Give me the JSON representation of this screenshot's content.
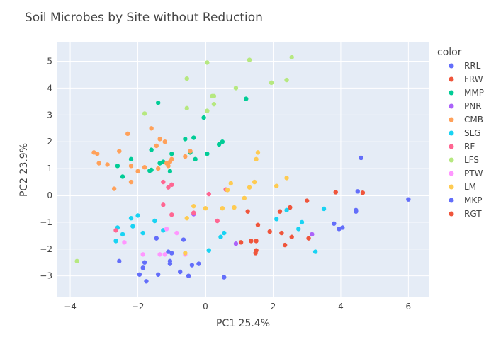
{
  "chart_data": {
    "type": "scatter",
    "title": "Soil Microbes by Site without Reduction",
    "xlabel": "PC1 25.4%",
    "ylabel": "PC2 23.9%",
    "xlim": [
      -4.4,
      6.6
    ],
    "ylim": [
      -3.8,
      5.7
    ],
    "x_ticks": [
      -4,
      -2,
      0,
      2,
      4,
      6
    ],
    "y_ticks": [
      -3,
      -2,
      -1,
      0,
      1,
      2,
      3,
      4,
      5
    ],
    "x_tick_labels": [
      "−4",
      "−2",
      "0",
      "2",
      "4",
      "6"
    ],
    "y_tick_labels": [
      "−3",
      "−2",
      "−1",
      "0",
      "1",
      "2",
      "3",
      "4",
      "5"
    ],
    "grid": true,
    "background": "#E5ECF6",
    "legend_title": "color",
    "legend_position": "right",
    "series": [
      {
        "name": "RRL",
        "color": "#636EFA",
        "points": [
          [
            4.6,
            1.4
          ],
          [
            4.5,
            0.15
          ],
          [
            6.0,
            -0.15
          ],
          [
            4.45,
            -0.6
          ],
          [
            4.45,
            -0.55
          ],
          [
            3.8,
            -1.05
          ],
          [
            3.95,
            -1.25
          ],
          [
            4.05,
            -1.2
          ]
        ]
      },
      {
        "name": "FRW",
        "color": "#EF553B",
        "points": [
          [
            3.85,
            0.12
          ],
          [
            4.65,
            0.1
          ],
          [
            3.0,
            -0.2
          ],
          [
            2.5,
            -0.45
          ],
          [
            2.2,
            -0.6
          ],
          [
            1.25,
            -0.6
          ],
          [
            1.55,
            -1.1
          ],
          [
            1.9,
            -1.35
          ],
          [
            2.25,
            -1.4
          ],
          [
            3.05,
            -1.6
          ],
          [
            2.55,
            -1.55
          ],
          [
            2.35,
            -1.85
          ],
          [
            1.05,
            -1.75
          ],
          [
            1.35,
            -1.7
          ],
          [
            1.5,
            -1.7
          ],
          [
            1.5,
            -2.05
          ],
          [
            1.48,
            -2.15
          ]
        ]
      },
      {
        "name": "MMP",
        "color": "#00CC96",
        "points": [
          [
            -1.4,
            3.45
          ],
          [
            1.2,
            3.6
          ],
          [
            -0.05,
            2.9
          ],
          [
            -0.35,
            2.15
          ],
          [
            0.5,
            2.0
          ],
          [
            -0.6,
            2.1
          ],
          [
            0.4,
            1.9
          ],
          [
            -1.6,
            1.7
          ],
          [
            -0.45,
            1.6
          ],
          [
            0.05,
            1.55
          ],
          [
            -1.0,
            1.55
          ],
          [
            -2.2,
            1.35
          ],
          [
            -1.25,
            1.25
          ],
          [
            -1.35,
            1.2
          ],
          [
            -0.3,
            1.35
          ],
          [
            -2.6,
            1.1
          ],
          [
            -1.05,
            0.9
          ],
          [
            -1.6,
            0.95
          ],
          [
            -1.65,
            0.92
          ],
          [
            -2.45,
            0.7
          ]
        ]
      },
      {
        "name": "PNR",
        "color": "#AB63FA",
        "points": [
          [
            3.15,
            -1.45
          ],
          [
            0.9,
            -1.8
          ],
          [
            -0.35,
            -0.7
          ]
        ]
      },
      {
        "name": "CMB",
        "color": "#FFA15A",
        "points": [
          [
            -1.6,
            2.5
          ],
          [
            -2.3,
            2.3
          ],
          [
            -1.35,
            2.1
          ],
          [
            -1.2,
            2.0
          ],
          [
            -1.45,
            1.85
          ],
          [
            -0.45,
            1.65
          ],
          [
            -3.3,
            1.6
          ],
          [
            -2.55,
            1.65
          ],
          [
            -3.2,
            1.55
          ],
          [
            -1.0,
            1.35
          ],
          [
            -1.05,
            1.25
          ],
          [
            -1.15,
            1.2
          ],
          [
            -3.15,
            1.2
          ],
          [
            -2.9,
            1.15
          ],
          [
            -2.2,
            1.1
          ],
          [
            -1.4,
            1.0
          ],
          [
            -1.8,
            1.05
          ],
          [
            -1.1,
            1.1
          ],
          [
            -0.6,
            1.45
          ],
          [
            -2.0,
            0.9
          ],
          [
            -2.2,
            0.5
          ],
          [
            -2.7,
            0.25
          ]
        ]
      },
      {
        "name": "SLG",
        "color": "#19D3F3",
        "points": [
          [
            3.5,
            -0.5
          ],
          [
            2.4,
            -0.55
          ],
          [
            2.85,
            -1.0
          ],
          [
            2.1,
            -0.88
          ],
          [
            2.75,
            -1.25
          ],
          [
            -2.0,
            -0.75
          ],
          [
            -2.2,
            -0.85
          ],
          [
            -2.15,
            -1.15
          ],
          [
            -2.6,
            -1.2
          ],
          [
            -2.45,
            -1.45
          ],
          [
            -1.85,
            -1.4
          ],
          [
            -2.65,
            -1.7
          ],
          [
            -1.5,
            -0.95
          ],
          [
            -1.25,
            -1.3
          ],
          [
            0.55,
            -1.4
          ],
          [
            0.45,
            -1.55
          ],
          [
            3.25,
            -2.1
          ],
          [
            0.1,
            -2.05
          ]
        ]
      },
      {
        "name": "RF",
        "color": "#FF6692",
        "points": [
          [
            -1.25,
            0.5
          ],
          [
            -1.1,
            0.3
          ],
          [
            -1.0,
            0.4
          ],
          [
            0.1,
            0.05
          ],
          [
            0.6,
            0.22
          ],
          [
            -1.25,
            -0.35
          ],
          [
            -1.0,
            -0.72
          ],
          [
            -0.35,
            -0.65
          ],
          [
            0.35,
            -0.95
          ],
          [
            -2.65,
            -1.3
          ]
        ]
      },
      {
        "name": "LFS",
        "color": "#B6E880",
        "points": [
          [
            2.55,
            5.15
          ],
          [
            0.05,
            4.95
          ],
          [
            1.3,
            5.05
          ],
          [
            -0.55,
            4.35
          ],
          [
            2.4,
            4.3
          ],
          [
            1.95,
            4.2
          ],
          [
            0.9,
            4.0
          ],
          [
            0.2,
            3.7
          ],
          [
            0.25,
            3.7
          ],
          [
            0.25,
            3.4
          ],
          [
            -1.8,
            3.05
          ],
          [
            -0.55,
            3.25
          ],
          [
            0.05,
            3.15
          ],
          [
            -3.8,
            -2.45
          ]
        ]
      },
      {
        "name": "PTW",
        "color": "#FF97FF",
        "points": [
          [
            -1.15,
            -1.25
          ],
          [
            -0.85,
            -1.4
          ],
          [
            -2.4,
            -1.75
          ],
          [
            -1.85,
            -2.2
          ],
          [
            -1.35,
            -2.2
          ],
          [
            -1.2,
            -2.2
          ],
          [
            -0.6,
            -2.2
          ]
        ]
      },
      {
        "name": "LM",
        "color": "#FECB52",
        "points": [
          [
            1.55,
            1.6
          ],
          [
            1.5,
            1.35
          ],
          [
            2.4,
            0.65
          ],
          [
            1.45,
            0.5
          ],
          [
            0.75,
            0.45
          ],
          [
            1.3,
            0.3
          ],
          [
            2.1,
            0.35
          ],
          [
            0.65,
            0.2
          ],
          [
            1.15,
            -0.1
          ],
          [
            -0.35,
            -0.4
          ],
          [
            0.0,
            -0.48
          ],
          [
            0.5,
            -0.48
          ],
          [
            0.85,
            -0.45
          ],
          [
            -0.55,
            -0.85
          ],
          [
            -0.6,
            -2.15
          ]
        ]
      },
      {
        "name": "MKP",
        "color": "#636EFA",
        "points": [
          [
            -1.45,
            -1.6
          ],
          [
            -1.0,
            -2.15
          ],
          [
            -0.65,
            -1.65
          ],
          [
            -1.1,
            -2.1
          ],
          [
            -2.55,
            -2.45
          ],
          [
            -1.8,
            -2.5
          ],
          [
            -1.05,
            -2.45
          ],
          [
            -1.05,
            -2.55
          ],
          [
            -0.2,
            -2.55
          ],
          [
            -0.4,
            -2.6
          ],
          [
            -1.85,
            -2.7
          ],
          [
            -0.75,
            -2.85
          ],
          [
            -1.95,
            -2.95
          ],
          [
            -1.4,
            -2.95
          ],
          [
            -0.5,
            -3.0
          ],
          [
            -1.75,
            -3.2
          ],
          [
            0.55,
            -3.05
          ]
        ]
      },
      {
        "name": "RGT",
        "color": "#EF553B",
        "points": []
      }
    ]
  }
}
